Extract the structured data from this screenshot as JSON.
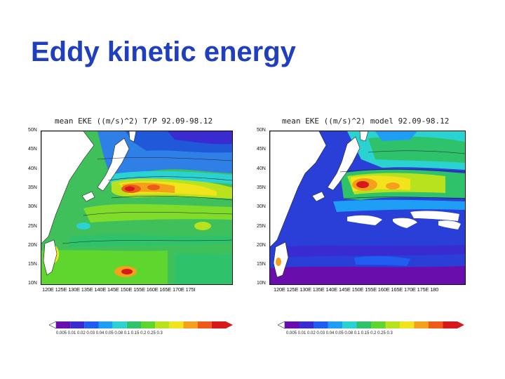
{
  "slide": {
    "title": "Eddy kinetic energy"
  },
  "colors": {
    "title": "#1f3fbf"
  },
  "left_panel": {
    "title": "mean EKE ((m/s)^2) T/P 92.09-98.12",
    "lat_labels": [
      "50N",
      "45N",
      "40N",
      "35N",
      "30N",
      "25N",
      "20N",
      "15N",
      "10N"
    ],
    "lon_labels": "120E 125E 130E 135E 140E 145E 150E 155E 160E 165E 170E 175I",
    "colorbar_labels": "0.005 0.01  0.02  0.03  0.04  0.05  0.08  0.1   0.15  0.2   0.25  0.3",
    "colorbar_colors": [
      "#6a0dad",
      "#3a2bd0",
      "#1f5ef0",
      "#1e9ef5",
      "#2ad2d2",
      "#2ec26a",
      "#5fd62e",
      "#b8e21e",
      "#f2e41c",
      "#f5a01a",
      "#ee5a1a",
      "#d7191c"
    ]
  },
  "right_panel": {
    "title": "mean EKE ((m/s)^2) model 92.09-98.12",
    "lat_labels": [
      "50N",
      "45N",
      "40N",
      "35N",
      "30N",
      "25N",
      "20N",
      "15N",
      "10N"
    ],
    "lon_labels": "120E 125E 130E 135E 140E 145E 150E 155E 160E 165E 170E 175E 180",
    "colorbar_labels": "0.005 0.01  0.02  0.03  0.04  0.05  0.08  0.1   0.15  0.2   0.25  0.3",
    "colorbar_colors": [
      "#6a0dad",
      "#3a2bd0",
      "#1f5ef0",
      "#1e9ef5",
      "#2ad2d2",
      "#2ec26a",
      "#5fd62e",
      "#b8e21e",
      "#f2e41c",
      "#f5a01a",
      "#ee5a1a",
      "#d7191c"
    ]
  }
}
